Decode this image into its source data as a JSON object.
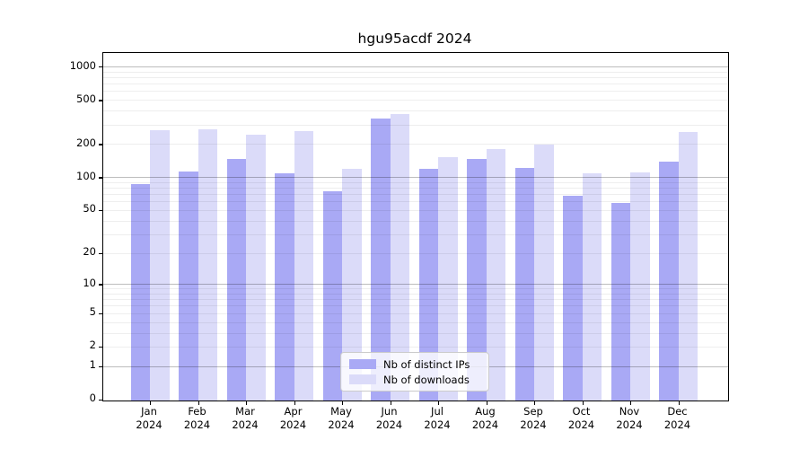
{
  "title": "hgu95acdf 2024",
  "colors": {
    "ips_bar": "#a9a9f5",
    "downloads_bar": "#dbdbf9",
    "axis": "#000000",
    "grid_major": "#c2c2c2",
    "grid_minor": "#ededed",
    "legend_border": "#cccccc"
  },
  "legend": {
    "items": [
      {
        "label": "Nb of distinct IPs",
        "color_key": "ips_bar"
      },
      {
        "label": "Nb of downloads",
        "color_key": "downloads_bar"
      }
    ]
  },
  "chart_data": {
    "type": "bar",
    "title": "hgu95acdf 2024",
    "x_months": [
      "Jan",
      "Feb",
      "Mar",
      "Apr",
      "May",
      "Jun",
      "Jul",
      "Aug",
      "Sep",
      "Oct",
      "Nov",
      "Dec"
    ],
    "x_year": "2024",
    "categories": [
      "Jan 2024",
      "Feb 2024",
      "Mar 2024",
      "Apr 2024",
      "May 2024",
      "Jun 2024",
      "Jul 2024",
      "Aug 2024",
      "Sep 2024",
      "Oct 2024",
      "Nov 2024",
      "Dec 2024"
    ],
    "series": [
      {
        "name": "Nb of distinct IPs",
        "values": [
          86,
          113,
          147,
          108,
          74,
          337,
          120,
          147,
          121,
          68,
          58,
          138
        ]
      },
      {
        "name": "Nb of downloads",
        "values": [
          267,
          269,
          244,
          261,
          118,
          374,
          153,
          181,
          198,
          108,
          110,
          258
        ]
      }
    ],
    "ylabel": "",
    "xlabel": "",
    "yscale": "log1p",
    "yticks": [
      0,
      1,
      2,
      5,
      10,
      20,
      50,
      100,
      200,
      500,
      1000
    ],
    "ylim": [
      0,
      1350
    ],
    "grid": true,
    "grid_major_at": [
      1,
      10,
      100,
      1000
    ],
    "legend_position": "lower center"
  }
}
